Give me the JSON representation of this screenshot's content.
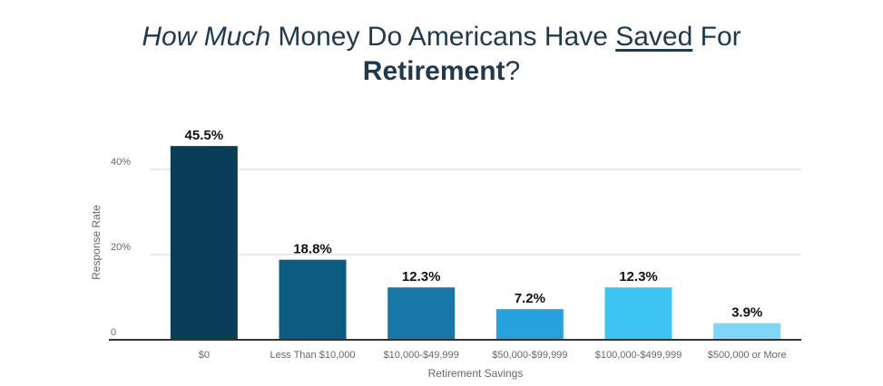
{
  "chart_data": {
    "type": "bar",
    "title_parts": {
      "p1": "How Much",
      "p2": " Money Do Americans Have ",
      "p3": "Saved",
      "p4": " For",
      "p5": "Retirement",
      "p6": "?"
    },
    "categories": [
      "$0",
      "Less Than $10,000",
      "$10,000-$49,999",
      "$50,000-$99,999",
      "$100,000-$499,999",
      "$500,000 or More"
    ],
    "values": [
      45.5,
      18.8,
      12.3,
      7.2,
      12.3,
      3.9
    ],
    "value_labels": [
      "45.5%",
      "18.8%",
      "12.3%",
      "7.2%",
      "12.3%",
      "3.9%"
    ],
    "colors": [
      "#0a3d57",
      "#0e5b82",
      "#1a78a8",
      "#27a2dc",
      "#3ec4f2",
      "#7fd6f7"
    ],
    "xlabel": "Retirement Savings",
    "ylabel": "Response Rate",
    "yticks": [
      {
        "value": 0,
        "label": "0"
      },
      {
        "value": 20,
        "label": "20%"
      },
      {
        "value": 40,
        "label": "40%"
      }
    ],
    "ylim": [
      0,
      50
    ],
    "grid": true
  }
}
